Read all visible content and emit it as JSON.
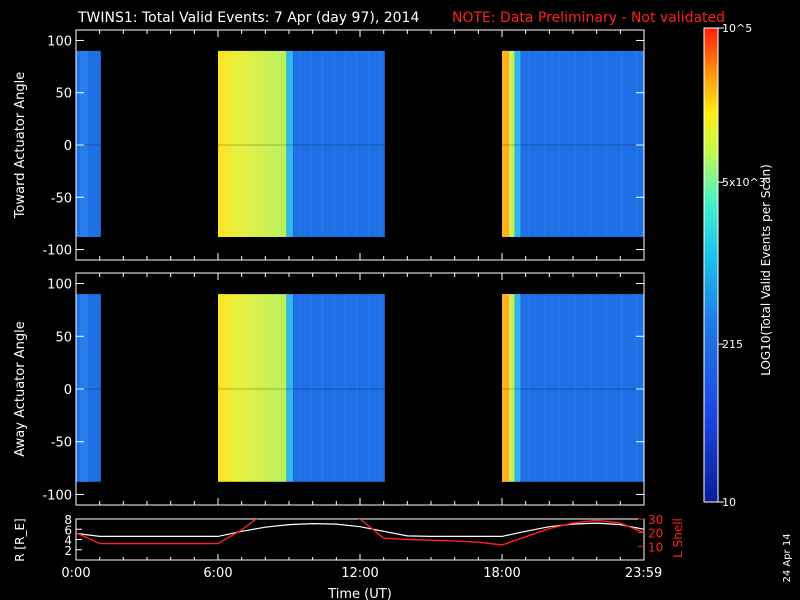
{
  "header": {
    "title": "TWINS1: Total Valid Events:  7 Apr (day  97), 2014",
    "note": "NOTE: Data Preliminary - Not validated"
  },
  "side_label": "24 Apr 14",
  "colors": {
    "background": "#000000",
    "axis": "#ffffff",
    "note": "#ff2020",
    "lshell": "#ff2020",
    "radius": "#ffffff"
  },
  "chart_data": [
    {
      "type": "heatmap",
      "panel": "toward",
      "ylabel": "Toward Actuator Angle",
      "ylim": [
        -110,
        110
      ],
      "yticks": [
        100,
        50,
        0,
        -50,
        -100
      ],
      "ytick_labels": [
        "100",
        "50",
        "0",
        "-50",
        "-100"
      ],
      "data_extent_deg": [
        -88,
        90
      ],
      "xlim_hours": [
        0,
        24
      ],
      "coverage_blocks": [
        {
          "start_hour": 0.0,
          "end_hour": 1.05,
          "level": "low",
          "approx_events": 215
        },
        {
          "start_hour": 6.0,
          "end_hour": 13.05,
          "level": "mixed",
          "profile": "high at start, decreasing to low after ~9h"
        },
        {
          "start_hour": 18.0,
          "end_hour": 24.0,
          "level": "mixed",
          "profile": "high at start, low after ~19h"
        }
      ],
      "secondary_axis": "none"
    },
    {
      "type": "heatmap",
      "panel": "away",
      "ylabel": "Away Actuator Angle",
      "ylim": [
        -110,
        110
      ],
      "yticks": [
        100,
        50,
        0,
        -50,
        -100
      ],
      "ytick_labels": [
        "100",
        "50",
        "0",
        "-50",
        "-100"
      ],
      "data_extent_deg": [
        -88,
        90
      ],
      "xlim_hours": [
        0,
        24
      ],
      "coverage_blocks": [
        {
          "start_hour": 0.0,
          "end_hour": 1.05,
          "level": "low",
          "approx_events": 215
        },
        {
          "start_hour": 6.0,
          "end_hour": 13.05,
          "level": "mixed",
          "profile": "high at start, decreasing to low after ~9h"
        },
        {
          "start_hour": 18.0,
          "end_hour": 24.0,
          "level": "mixed",
          "profile": "high at start, low after ~19h"
        }
      ]
    },
    {
      "type": "line",
      "panel": "orbit",
      "xlabel": "Time (UT)",
      "x_tick_labels": [
        "0:00",
        "6:00",
        "12:00",
        "18:00",
        "23:59"
      ],
      "x_tick_hours": [
        0,
        6,
        12,
        18,
        23.983
      ],
      "ylabel_left": "R [R_E]",
      "ylim_left": [
        0,
        8
      ],
      "yticks_left": [
        2,
        4,
        6,
        8
      ],
      "ylabel_right": "L Shell",
      "ylim_right": [
        0,
        30
      ],
      "yticks_right": [
        10,
        20,
        30
      ],
      "series": [
        {
          "axis": "left",
          "x": [
            0,
            1,
            2,
            3,
            4,
            5,
            6,
            7,
            8,
            9,
            10,
            11,
            12,
            13,
            14,
            15,
            16,
            17,
            18,
            19,
            20,
            21,
            22,
            23,
            24
          ],
          "y": [
            5.2,
            4.6,
            4.6,
            4.6,
            4.6,
            4.6,
            4.6,
            5.6,
            6.4,
            6.9,
            7.1,
            7.0,
            6.5,
            5.6,
            4.7,
            4.6,
            4.6,
            4.6,
            4.6,
            5.6,
            6.5,
            7.0,
            7.2,
            6.9,
            6.0
          ]
        },
        {
          "axis": "right",
          "x": [
            0,
            1,
            2,
            3,
            4,
            5,
            6,
            7,
            8,
            9,
            10,
            11,
            12,
            13,
            14,
            15,
            16,
            17,
            18,
            19,
            20,
            21,
            22,
            23,
            24
          ],
          "y": [
            20,
            12,
            12,
            12,
            12,
            12,
            12,
            22,
            35,
            35,
            35,
            35,
            30,
            16,
            15,
            14.5,
            14,
            13,
            11,
            17,
            23,
            27,
            29,
            27,
            20
          ]
        }
      ]
    },
    {
      "type": "colorbar",
      "label": "LOG10(Total Valid Events per Scan)",
      "scale": "log",
      "range": [
        10,
        100000
      ],
      "ticks": [
        100000,
        5000,
        215,
        10
      ],
      "tick_labels": [
        "10^5",
        "5x10^3",
        "215",
        "10"
      ]
    }
  ]
}
